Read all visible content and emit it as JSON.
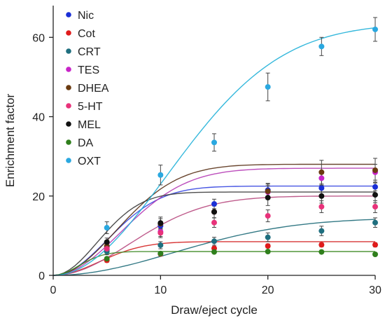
{
  "chart_data": {
    "type": "scatter",
    "title": "",
    "xlabel": "Draw/eject cycle",
    "ylabel": "Enrichment factor",
    "xlim": [
      0,
      30
    ],
    "ylim": [
      0,
      68
    ],
    "xticks": [
      0,
      10,
      20,
      30
    ],
    "yticks": [
      0,
      20,
      40,
      60
    ],
    "x": [
      0,
      5,
      10,
      15,
      20,
      25,
      30
    ],
    "grid": false,
    "legend_position": "top-left",
    "series": [
      {
        "name": "Nic",
        "color": "#1a2fd6",
        "values": [
          0,
          6.5,
          12.5,
          18.0,
          21.5,
          22.0,
          22.3
        ],
        "errors": [
          0,
          0.6,
          1.0,
          1.2,
          1.5,
          1.0,
          1.0
        ]
      },
      {
        "name": "Cot",
        "color": "#e01b1b",
        "values": [
          0,
          3.8,
          5.4,
          6.8,
          7.4,
          7.7,
          7.7
        ],
        "errors": [
          0,
          0.5,
          0.5,
          0.5,
          0.5,
          0.5,
          0.5
        ]
      },
      {
        "name": "CRT",
        "color": "#1f6f7f",
        "values": [
          0,
          6.0,
          7.6,
          8.6,
          9.6,
          11.2,
          13.3
        ],
        "errors": [
          0,
          0.8,
          0.9,
          1.0,
          1.1,
          1.2,
          1.2
        ]
      },
      {
        "name": "TES",
        "color": "#c824c8",
        "values": [
          0,
          7.0,
          11.0,
          16.0,
          21.0,
          24.5,
          26.0
        ],
        "errors": [
          0,
          1.0,
          1.2,
          1.5,
          1.6,
          1.8,
          2.0
        ]
      },
      {
        "name": "DHEA",
        "color": "#6a3a10",
        "values": [
          0,
          7.4,
          13.0,
          16.0,
          21.2,
          26.0,
          26.5
        ],
        "errors": [
          0,
          1.0,
          1.3,
          1.5,
          2.0,
          3.0,
          3.0
        ]
      },
      {
        "name": "5-HT",
        "color": "#e8327a",
        "values": [
          0,
          6.7,
          10.7,
          13.3,
          15.0,
          17.3,
          17.3
        ],
        "errors": [
          0,
          1.0,
          1.2,
          1.2,
          1.5,
          1.5,
          1.5
        ]
      },
      {
        "name": "MEL",
        "color": "#111111",
        "values": [
          0,
          8.4,
          13.2,
          16.0,
          19.6,
          20.0,
          20.3
        ],
        "errors": [
          0,
          1.0,
          1.5,
          1.5,
          2.0,
          1.8,
          2.0
        ]
      },
      {
        "name": "DA",
        "color": "#2f7f1c",
        "values": [
          0,
          4.2,
          5.5,
          5.9,
          6.0,
          5.9,
          5.3
        ],
        "errors": [
          0,
          0.4,
          0.4,
          0.4,
          0.4,
          0.4,
          0.4
        ]
      },
      {
        "name": "OXT",
        "color": "#2aa8e0",
        "values": [
          0,
          12.0,
          25.3,
          33.5,
          47.5,
          57.7,
          62.0
        ],
        "errors": [
          0,
          1.5,
          2.5,
          2.2,
          3.5,
          2.3,
          3.0
        ]
      }
    ],
    "fits": [
      {
        "series": "Nic",
        "type": "sat",
        "A": 22.5,
        "k": 0.02,
        "color": "#3344e0"
      },
      {
        "series": "Cot",
        "type": "sat",
        "A": 8.5,
        "k": 0.028,
        "color": "#d42020"
      },
      {
        "series": "CRT",
        "type": "sat",
        "A": 14.5,
        "k": 0.004,
        "color": "#1d6a78"
      },
      {
        "series": "TES",
        "type": "sat",
        "A": 27.0,
        "k": 0.013,
        "color": "#b53bb5"
      },
      {
        "series": "DHEA",
        "type": "sat",
        "A": 28.0,
        "k": 0.015,
        "color": "#5a3218"
      },
      {
        "series": "5-HT",
        "type": "sat",
        "A": 20.0,
        "k": 0.01,
        "color": "#b84a80"
      },
      {
        "series": "MEL",
        "type": "sat",
        "A": 21.0,
        "k": 0.03,
        "color": "#3b3b3b"
      },
      {
        "series": "DA",
        "type": "sat",
        "A": 6.0,
        "k": 0.09,
        "color": "#3d8a24"
      },
      {
        "series": "OXT",
        "type": "sat",
        "A": 63.5,
        "k": 0.0045,
        "color": "#1fb0d8"
      }
    ]
  }
}
